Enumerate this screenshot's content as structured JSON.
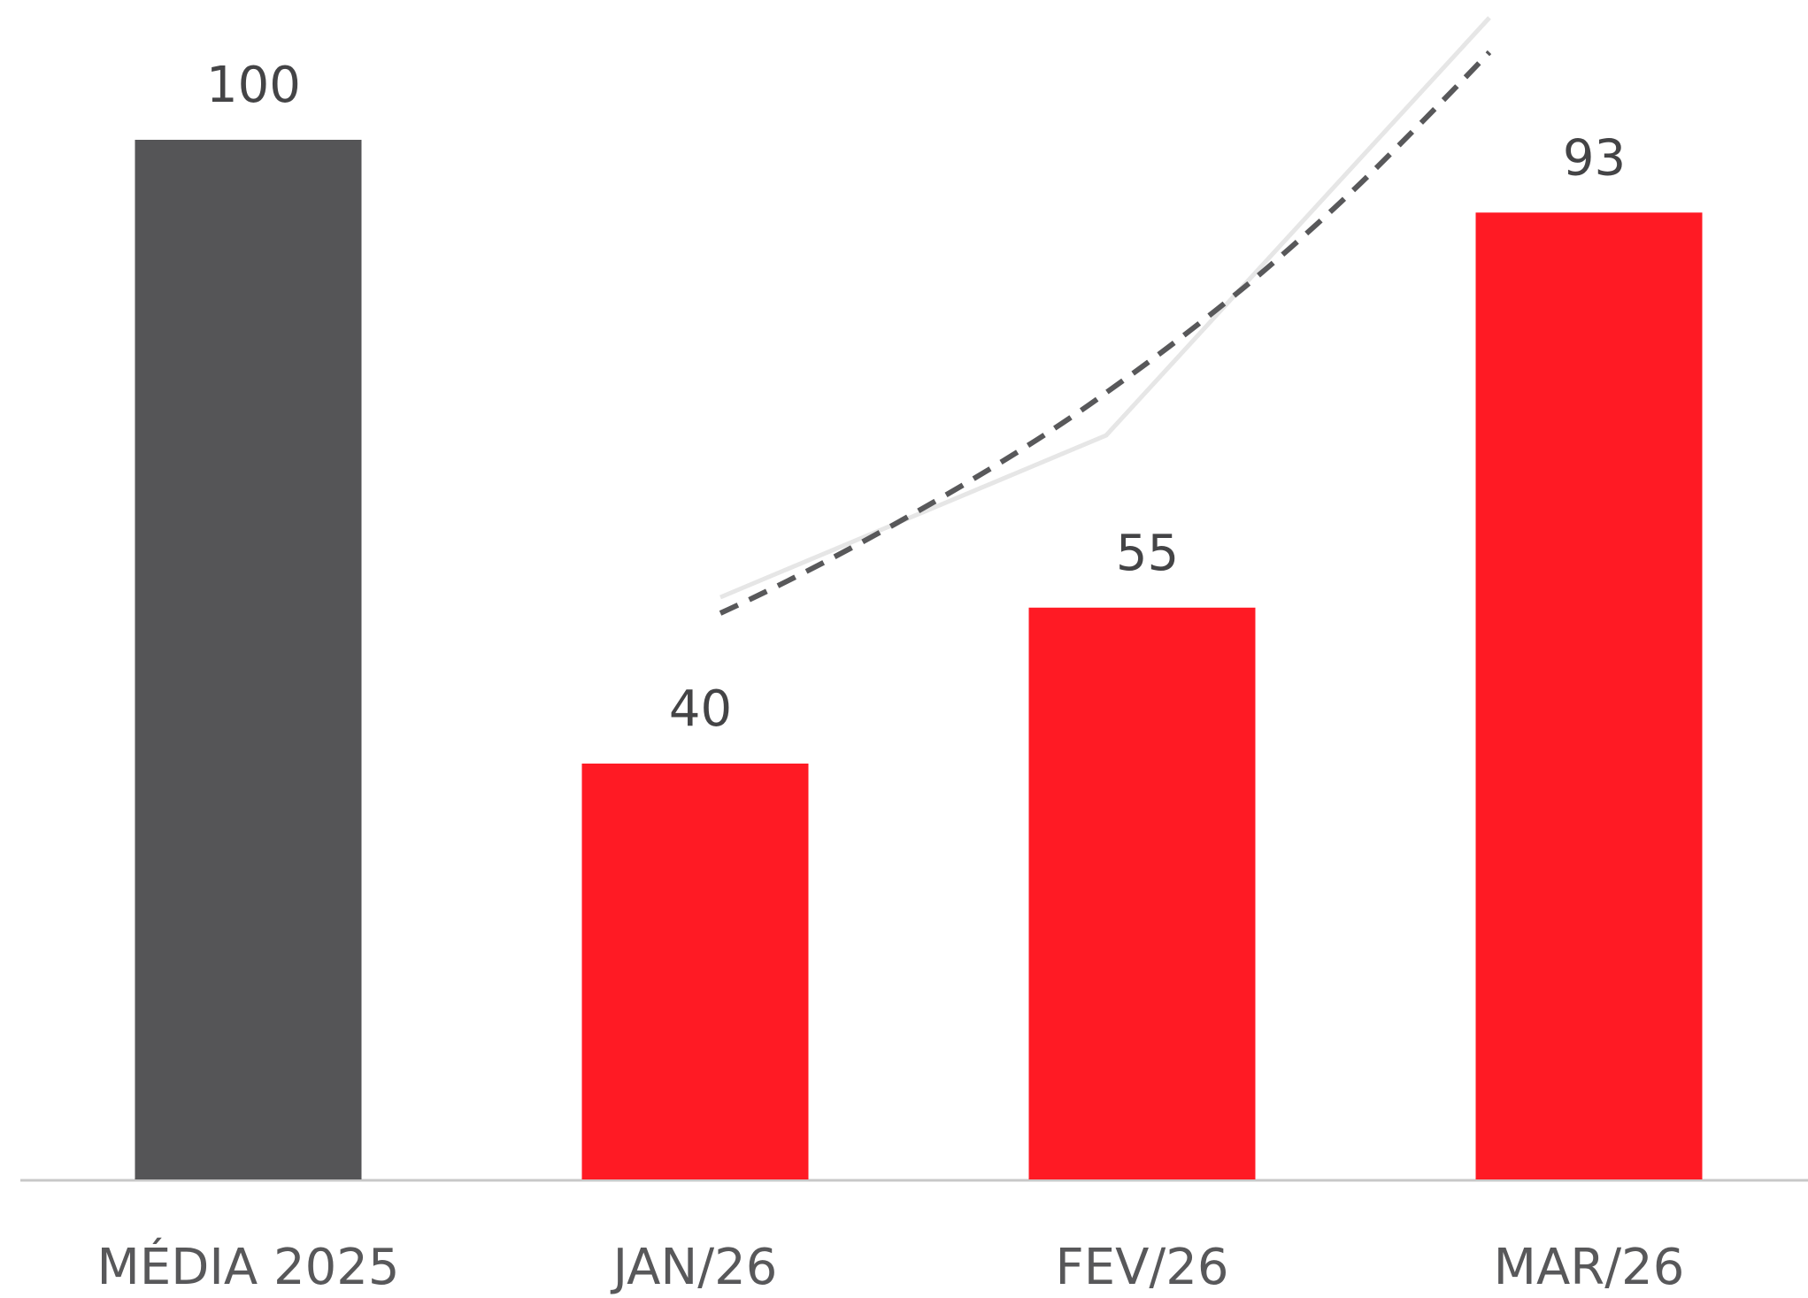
{
  "chart_data": {
    "type": "bar",
    "categories": [
      "MÉDIA 2025",
      "JAN/26",
      "FEV/26",
      "MAR/26"
    ],
    "values": [
      100,
      40,
      55,
      93
    ],
    "colors": [
      "#555557",
      "#ff1a24",
      "#ff1a24",
      "#ff1a24"
    ],
    "ylim": [
      0,
      100
    ]
  }
}
